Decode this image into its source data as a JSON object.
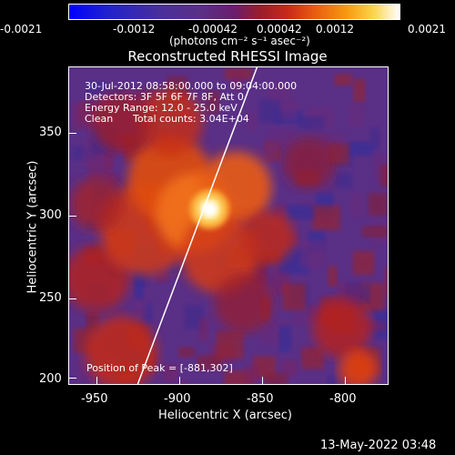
{
  "colorbar": {
    "ticks": [
      "-0.0021",
      "-0.0012",
      "-0.00042",
      "0.00042",
      "0.0012",
      "0.0021"
    ],
    "unit_label": "(photons cm⁻² s⁻¹ asec⁻²)"
  },
  "title": "Reconstructed RHESSI Image",
  "annotation": {
    "line1": "30-Jul-2012 08:58:00.000 to 09:04:00.000",
    "line2": "Detectors: 3F 5F 6F 7F 8F, Att 0",
    "line3": "Energy Range: 12.0 - 25.0 keV",
    "line4_a": "Clean",
    "line4_b": "Total counts: 3.04E+04",
    "peak": "Position of Peak = [-881,302]"
  },
  "axes": {
    "xlabel": "Heliocentric X (arcsec)",
    "ylabel": "Heliocentric Y (arcsec)",
    "xticks": [
      "-950",
      "-900",
      "-850",
      "-800"
    ],
    "yticks": [
      "350",
      "300",
      "250",
      "200"
    ],
    "xticks_values": [
      -950,
      -900,
      -850,
      -800
    ],
    "yticks_values": [
      350,
      300,
      250,
      200
    ],
    "xlim": [
      -967,
      -772
    ],
    "ylim": [
      196,
      388
    ]
  },
  "timestamp": "13-May-2022 03:48",
  "colors": {
    "background": "#5a2f86",
    "peak": "#ffffff",
    "limb_line": "#ffffff"
  },
  "image_features": {
    "peak_x": -881,
    "peak_y": 302,
    "limb": [
      [
        -925,
        196
      ],
      [
        -898,
        280
      ],
      [
        -874,
        340
      ],
      [
        -852,
        388
      ]
    ]
  }
}
